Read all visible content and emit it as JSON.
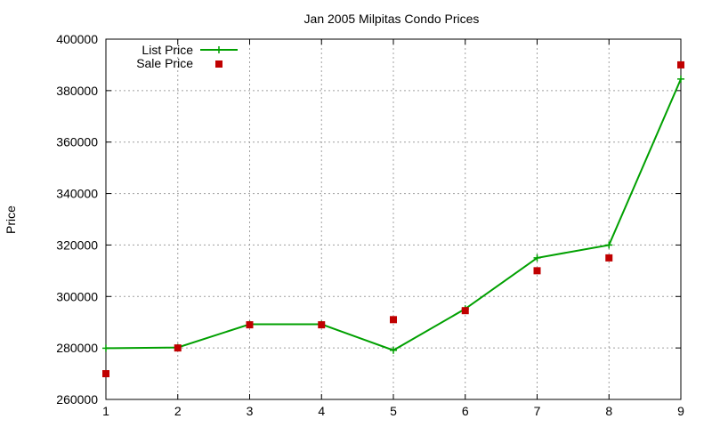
{
  "chart_data": {
    "type": "line",
    "title": "Jan 2005 Milpitas Condo Prices",
    "xlabel": "",
    "ylabel": "Price",
    "xlim": [
      1,
      9
    ],
    "ylim": [
      260000,
      400000
    ],
    "x_ticks": [
      1,
      2,
      3,
      4,
      5,
      6,
      7,
      8,
      9
    ],
    "y_ticks": [
      260000,
      280000,
      300000,
      320000,
      340000,
      360000,
      380000,
      400000
    ],
    "grid": true,
    "legend_position": "top-left",
    "x": [
      1,
      2,
      3,
      4,
      5,
      6,
      7,
      8,
      9
    ],
    "series": [
      {
        "name": "List Price",
        "style": "lines+points",
        "marker": "plus",
        "color": "#00a000",
        "values": [
          279900,
          280200,
          289200,
          289200,
          279100,
          295200,
          315000,
          320000,
          384500
        ]
      },
      {
        "name": "Sale Price",
        "style": "points",
        "marker": "square",
        "color": "#c00000",
        "values": [
          270000,
          280000,
          289000,
          289000,
          291000,
          294500,
          310000,
          315000,
          390000
        ]
      }
    ]
  }
}
